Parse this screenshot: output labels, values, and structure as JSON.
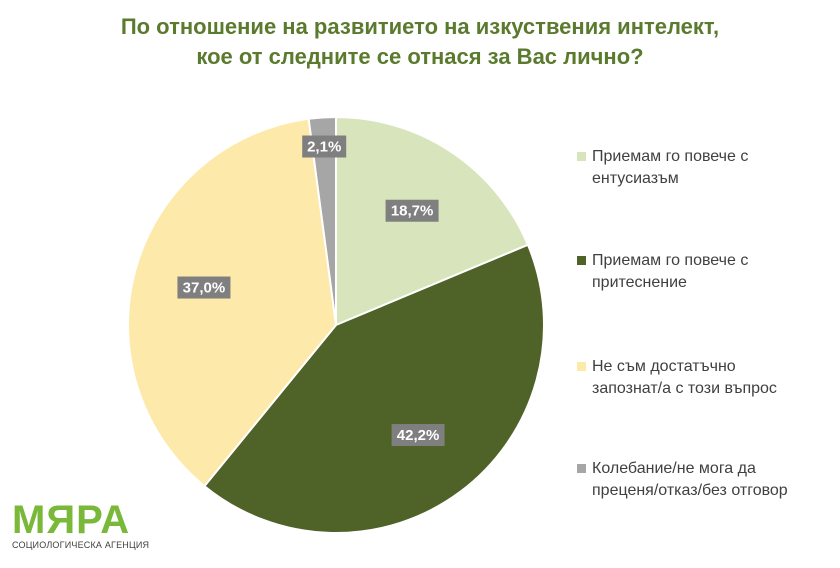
{
  "title_lines": [
    "По отношение на развитието на изкуствения интелект,",
    "кое от следните се отнася за Вас лично?"
  ],
  "logo": {
    "name": "МЯРА",
    "subtitle": "СОЦИОЛОГИЧЕСКА АГЕНЦИЯ"
  },
  "chart_data": {
    "type": "pie",
    "title": "По отношение на развитието на изкуствения интелект, кое от следните се отнася за Вас лично?",
    "start_angle_deg": 0,
    "direction": "clockwise",
    "legend_position": "right",
    "slices": [
      {
        "label": "Приемам го повече с ентусиазъм",
        "label_lines": [
          "Приемам го повече с",
          "ентусиазъм"
        ],
        "value": 18.7,
        "value_label": "18,7%",
        "color": "#d8e4bc"
      },
      {
        "label": "Приемам го повече с притеснение",
        "label_lines": [
          "Приемам го повече с",
          "притеснение"
        ],
        "value": 42.2,
        "value_label": "42,2%",
        "color": "#4f6228"
      },
      {
        "label": "Не съм достатъчно запознат/а с този въпрос",
        "label_lines": [
          "Не съм достатъчно",
          "запознат/а с този въпрос"
        ],
        "value": 37.0,
        "value_label": "37,0%",
        "color": "#fde9a9"
      },
      {
        "label": "Колебание/не мога да преценя/отказ/без отговор",
        "label_lines": [
          "Колебание/не мога да",
          "преценя/отказ/без отговор"
        ],
        "value": 2.1,
        "value_label": "2,1%",
        "color": "#a6a6a6"
      }
    ]
  }
}
